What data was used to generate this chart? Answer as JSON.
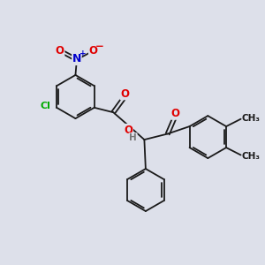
{
  "background_color": "#dde0ea",
  "bond_color": "#1a1a1a",
  "bond_width": 1.3,
  "atom_colors": {
    "O": "#e00000",
    "N": "#0000cc",
    "Cl": "#00aa00",
    "H": "#777777",
    "C": "#1a1a1a"
  },
  "font_size_atom": 8.5,
  "font_size_small": 7.5
}
